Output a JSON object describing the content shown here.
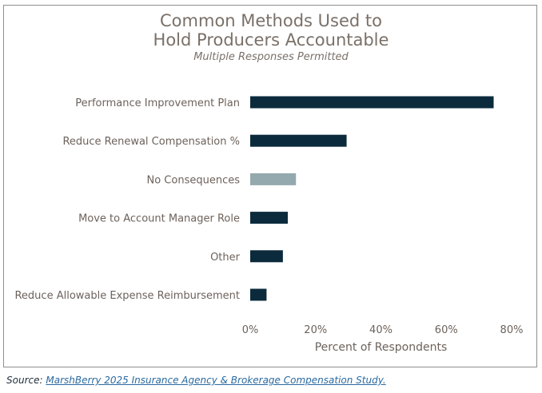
{
  "chart_data": {
    "type": "bar",
    "orientation": "horizontal",
    "title_line1": "Common Methods Used to",
    "title_line2": "Hold Producers Accountable",
    "subtitle": "Multiple Responses Permitted",
    "xlabel": "Percent of Respondents",
    "ylabel": "",
    "xlim": [
      0,
      80
    ],
    "x_ticks": [
      "0%",
      "20%",
      "40%",
      "60%",
      "80%"
    ],
    "x_tick_values": [
      0,
      20,
      40,
      60,
      80
    ],
    "categories": [
      "Performance Improvement Plan",
      "Reduce Renewal Compensation %",
      "No Consequences",
      "Move to Account Manager Role",
      "Other",
      "Reduce Allowable Expense Reimbursement"
    ],
    "values": [
      74.5,
      29.5,
      14,
      11.5,
      10,
      5
    ],
    "bar_colors": [
      "#0b2b3c",
      "#0b2b3c",
      "#94a9ad",
      "#0b2b3c",
      "#0b2b3c",
      "#0b2b3c"
    ],
    "grid": false,
    "legend": "none"
  },
  "source": {
    "label": "Source:",
    "link_text": "MarshBerry 2025 Insurance Agency & Brokerage Compensation Study."
  }
}
